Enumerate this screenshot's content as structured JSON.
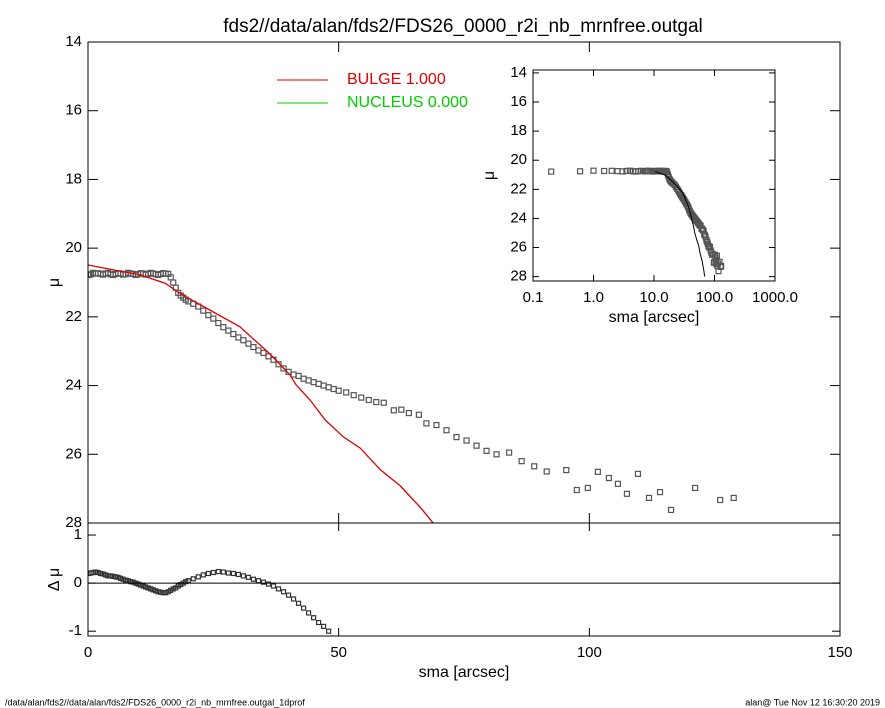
{
  "chart_data": [
    {
      "type": "scatter",
      "title": "fds2//data/alan/fds2/FDS26_0000_r2i_nb_mrnfree.outgal",
      "ylabel": "μ",
      "xlim": [
        0,
        150
      ],
      "ylim": [
        28,
        14
      ],
      "yticks": [
        14,
        16,
        18,
        20,
        22,
        24,
        26,
        28
      ],
      "series": [
        {
          "color": "#555555",
          "style": "squares",
          "x": [
            0.2,
            0.6,
            1,
            1.5,
            2,
            2.5,
            3,
            3.5,
            4,
            4.5,
            5,
            5.5,
            6,
            6.5,
            7,
            7.5,
            8,
            8.5,
            9,
            9.5,
            10,
            10.5,
            11,
            11.5,
            12,
            12.5,
            13,
            13.5,
            14,
            14.5,
            15,
            15.5,
            16,
            16.5,
            17,
            17.5,
            18,
            18.5,
            19,
            19.5,
            20,
            21,
            22,
            23,
            24,
            25,
            26,
            27,
            28,
            29,
            30,
            31,
            32,
            33,
            34,
            35,
            36,
            37,
            38,
            39,
            40,
            41,
            42,
            43,
            44,
            45,
            46,
            47,
            48,
            49,
            50,
            51.5,
            53,
            54.5,
            56,
            57.5,
            59,
            61,
            62.5,
            64,
            66,
            67.5,
            69.5,
            71.5,
            73.5,
            75.5,
            77.5,
            79.5,
            81.5,
            84,
            86.5,
            89,
            91.5,
            95.4,
            97.5,
            99.7,
            101.7,
            103.9,
            105.7,
            107.5,
            109.7,
            111.9,
            114.1,
            116.3,
            121.1,
            126.1,
            128.8
          ],
          "values": [
            20.78,
            20.76,
            20.72,
            20.74,
            20.73,
            20.75,
            20.77,
            20.74,
            20.72,
            20.76,
            20.78,
            20.75,
            20.73,
            20.74,
            20.77,
            20.76,
            20.72,
            20.74,
            20.75,
            20.78,
            20.76,
            20.73,
            20.74,
            20.77,
            20.75,
            20.72,
            20.74,
            20.76,
            20.78,
            20.75,
            20.73,
            20.74,
            20.75,
            20.85,
            21.0,
            21.15,
            21.3,
            21.38,
            21.44,
            21.5,
            21.55,
            21.62,
            21.7,
            21.82,
            21.95,
            22.05,
            22.18,
            22.3,
            22.4,
            22.5,
            22.6,
            22.68,
            22.78,
            22.88,
            22.98,
            23.05,
            23.15,
            23.25,
            23.38,
            23.5,
            23.6,
            23.68,
            23.72,
            23.8,
            23.85,
            23.9,
            23.95,
            24.0,
            24.05,
            24.1,
            24.15,
            24.2,
            24.28,
            24.35,
            24.42,
            24.48,
            24.5,
            24.72,
            24.7,
            24.8,
            24.85,
            25.1,
            25.15,
            25.3,
            25.5,
            25.6,
            25.75,
            25.9,
            26.0,
            25.95,
            26.2,
            26.35,
            26.5,
            26.46,
            27.04,
            26.98,
            26.51,
            26.69,
            26.86,
            27.15,
            26.57,
            27.27,
            27.1,
            27.62,
            26.98,
            27.33,
            27.27
          ]
        },
        {
          "name": "BULGE  1.000",
          "color": "#e00000",
          "style": "line",
          "x": [
            0,
            10.4,
            15.4,
            17.4,
            19.9,
            24.3,
            30.3,
            36.3,
            40.3,
            41.5,
            44.3,
            47.3,
            50.9,
            54.3,
            58.3,
            62.3,
            66.2,
            68.8
          ],
          "values": [
            20.49,
            20.78,
            21.02,
            21.22,
            21.45,
            21.8,
            22.29,
            23.08,
            23.69,
            23.98,
            24.42,
            25.0,
            25.49,
            25.82,
            26.45,
            26.92,
            27.53,
            27.99
          ]
        },
        {
          "name": "NUCLEUS  0.000",
          "color": "#00cc00",
          "style": "line"
        }
      ]
    },
    {
      "type": "scatter",
      "xlabel": "sma [arcsec]",
      "ylabel": "μ",
      "log_x": true,
      "model_color": "#000000",
      "xlim": [
        0.1,
        1000
      ],
      "xticks": [
        {
          "value": 0.1,
          "label": "0.1"
        },
        {
          "value": 1,
          "label": "1.0"
        },
        {
          "value": 10,
          "label": "10.0"
        },
        {
          "value": 100,
          "label": "100.0"
        },
        {
          "value": 1000,
          "label": "1000.0"
        }
      ],
      "ylim": [
        28.3,
        13.8
      ],
      "yticks": [
        14,
        16,
        18,
        20,
        22,
        24,
        26,
        28
      ]
    },
    {
      "type": "scatter",
      "xlabel": "sma [arcsec]",
      "ylabel": "Δ μ",
      "zero_line": true,
      "xlim": [
        0,
        150
      ],
      "xticks": [
        0,
        50,
        100,
        150
      ],
      "ylim": [
        -1.1,
        1.25
      ],
      "yticks": [
        -1,
        0,
        1
      ],
      "series": [
        {
          "color": "#333333",
          "x": [
            0.2,
            0.6,
            1,
            1.5,
            2,
            2.5,
            3,
            3.5,
            4,
            4.5,
            5,
            5.5,
            6,
            6.5,
            7,
            7.5,
            8,
            8.5,
            9,
            9.5,
            10,
            10.5,
            11,
            11.5,
            12,
            12.5,
            13,
            13.5,
            14,
            14.5,
            15,
            15.5,
            16,
            16.5,
            17,
            17.5,
            18,
            18.5,
            19,
            19.5,
            20,
            21,
            22,
            23,
            24,
            25,
            26,
            27,
            28,
            29,
            30,
            31,
            32,
            33,
            34,
            35,
            36,
            37,
            38,
            39,
            40,
            41,
            42,
            43,
            44,
            45,
            46,
            47,
            48
          ],
          "values": [
            0.2,
            0.21,
            0.22,
            0.23,
            0.22,
            0.2,
            0.19,
            0.17,
            0.15,
            0.15,
            0.14,
            0.13,
            0.12,
            0.1,
            0.08,
            0.06,
            0.05,
            0.03,
            0.02,
            0,
            -0.02,
            -0.04,
            -0.06,
            -0.08,
            -0.1,
            -0.12,
            -0.14,
            -0.16,
            -0.18,
            -0.19,
            -0.2,
            -0.2,
            -0.18,
            -0.15,
            -0.12,
            -0.1,
            -0.06,
            -0.03,
            0,
            0.03,
            0.05,
            0.09,
            0.13,
            0.17,
            0.2,
            0.22,
            0.24,
            0.23,
            0.21,
            0.2,
            0.18,
            0.15,
            0.12,
            0.08,
            0.05,
            0.02,
            -0.02,
            -0.06,
            -0.12,
            -0.18,
            -0.25,
            -0.33,
            -0.42,
            -0.52,
            -0.62,
            -0.72,
            -0.82,
            -0.9,
            -1.0
          ]
        }
      ]
    }
  ],
  "footer": {
    "left": "/data/alan/fds2//data/alan/fds2/FDS26_0000_r2i_nb_mrnfree.outgal_1dprof",
    "right": "alan@  Tue Nov 12 16:30:20 2019"
  }
}
